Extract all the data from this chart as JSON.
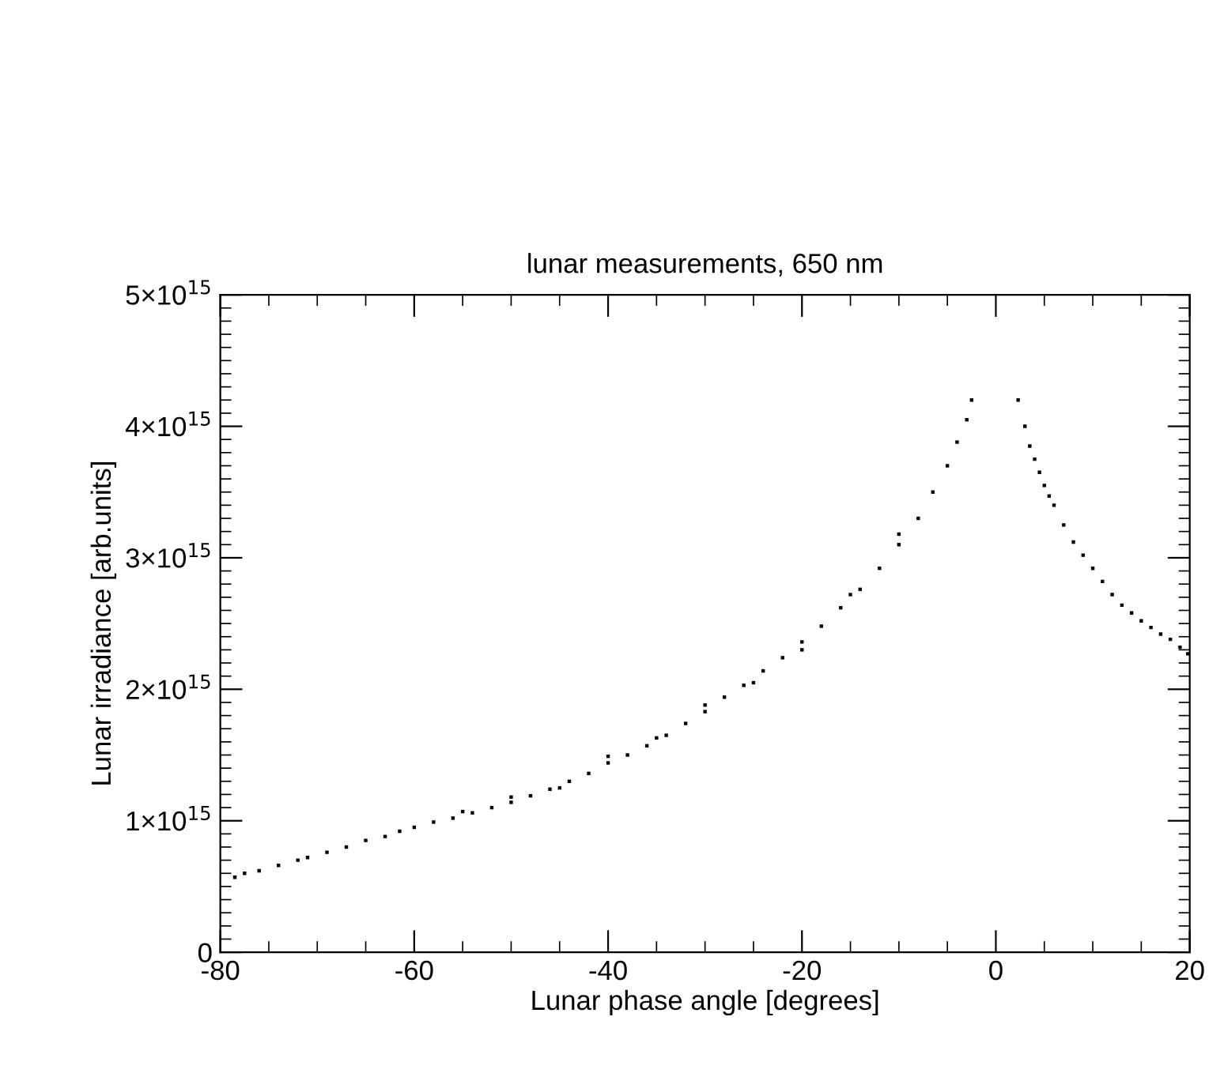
{
  "chart_data": {
    "type": "scatter",
    "title": "lunar measurements, 650 nm",
    "xlabel": "Lunar phase angle [degrees]",
    "ylabel": "Lunar irradiance [arb.units]",
    "xlim": [
      -80,
      20
    ],
    "xticks": [
      -80,
      -60,
      -40,
      -20,
      0,
      20
    ],
    "ylim": [
      0,
      5000000000000000.0
    ],
    "yticks": [
      {
        "value": 0,
        "label": "0"
      },
      {
        "value": 1000000000000000.0,
        "label": "1×10$^{15}$"
      },
      {
        "value": 2000000000000000.0,
        "label": "2×10$^{15}$"
      },
      {
        "value": 3000000000000000.0,
        "label": "3×10$^{15}$"
      },
      {
        "value": 4000000000000000.0,
        "label": "4×10$^{15}$"
      },
      {
        "value": 5000000000000000.0,
        "label": "5×10$^{15}$"
      }
    ],
    "grid": false,
    "legend": false,
    "marker": "square",
    "series": [
      {
        "color": "#000000",
        "x": [
          -78.5,
          -77.5,
          -76,
          -74,
          -72,
          -71,
          -69,
          -67,
          -65,
          -63,
          -61.5,
          -60,
          -58,
          -56,
          -54,
          -52,
          -50,
          -48,
          -46,
          -44,
          -42,
          -40,
          -38,
          -36,
          -34,
          -32,
          -30,
          -28,
          -26,
          -24,
          -22,
          -20,
          -18,
          -16,
          -14,
          -12,
          -10,
          -8,
          -6.5,
          -5,
          -4,
          -3,
          -2.5,
          -50,
          -40,
          -30,
          -20,
          -10,
          -15,
          -25,
          -35,
          -45,
          -55,
          2.3,
          3,
          3.5,
          4,
          4.5,
          5,
          5.5,
          6,
          7,
          8,
          9,
          10,
          11,
          12,
          13,
          14,
          15,
          16,
          17,
          18,
          19,
          19.8
        ],
        "values": [
          570000000000000.0,
          600000000000000.0,
          620000000000000.0,
          660000000000000.0,
          700000000000000.0,
          720000000000000.0,
          760000000000000.0,
          800000000000000.0,
          850000000000000.0,
          880000000000000.0,
          920000000000000.0,
          950000000000000.0,
          990000000000000.0,
          1020000000000000.0,
          1060000000000000.0,
          1100000000000000.0,
          1140000000000000.0,
          1190000000000000.0,
          1240000000000000.0,
          1300000000000000.0,
          1360000000000000.0,
          1440000000000000.0,
          1500000000000000.0,
          1570000000000000.0,
          1650000000000000.0,
          1740000000000000.0,
          1830000000000000.0,
          1940000000000000.0,
          2030000000000000.0,
          2140000000000000.0,
          2240000000000000.0,
          2360000000000000.0,
          2480000000000000.0,
          2620000000000000.0,
          2760000000000000.0,
          2920000000000000.0,
          3100000000000000.0,
          3300000000000000.0,
          3500000000000000.0,
          3700000000000000.0,
          3880000000000000.0,
          4050000000000000.0,
          4200000000000000.0,
          1180000000000000.0,
          1490000000000000.0,
          1880000000000000.0,
          2300000000000000.0,
          3180000000000000.0,
          2720000000000000.0,
          2050000000000000.0,
          1630000000000000.0,
          1250000000000000.0,
          1070000000000000.0,
          4200000000000000.0,
          4000000000000000.0,
          3850000000000000.0,
          3750000000000000.0,
          3650000000000000.0,
          3550000000000000.0,
          3470000000000000.0,
          3400000000000000.0,
          3250000000000000.0,
          3120000000000000.0,
          3020000000000000.0,
          2920000000000000.0,
          2820000000000000.0,
          2720000000000000.0,
          2640000000000000.0,
          2580000000000000.0,
          2520000000000000.0,
          2470000000000000.0,
          2420000000000000.0,
          2380000000000000.0,
          2320000000000000.0,
          2270000000000000.0
        ]
      }
    ]
  }
}
